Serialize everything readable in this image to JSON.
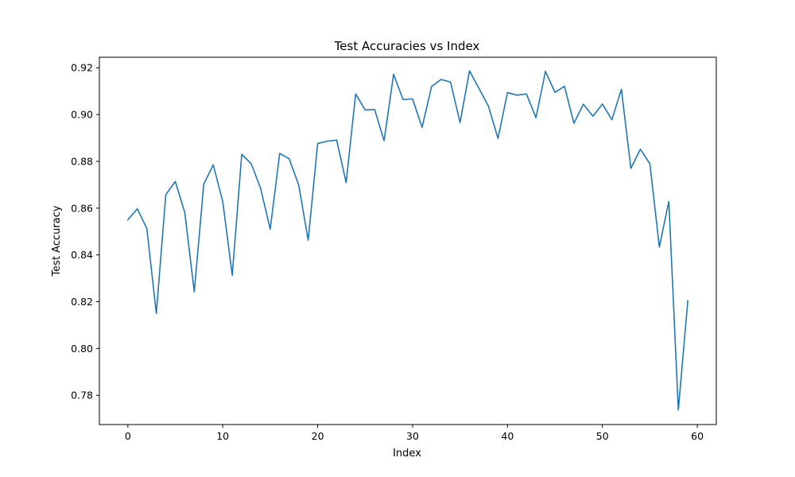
{
  "chart_data": {
    "type": "line",
    "title": "Test Accuracies vs Index",
    "xlabel": "Index",
    "ylabel": "Test Accuracy",
    "xlim": [
      -3,
      62
    ],
    "ylim": [
      0.7675,
      0.9245
    ],
    "xticks": [
      0,
      10,
      20,
      30,
      40,
      50,
      60
    ],
    "yticks": [
      0.78,
      0.8,
      0.82,
      0.84,
      0.86,
      0.88,
      0.9,
      0.92
    ],
    "xtick_labels": [
      "0",
      "10",
      "20",
      "30",
      "40",
      "50",
      "60"
    ],
    "ytick_labels": [
      "0.78",
      "0.80",
      "0.82",
      "0.84",
      "0.86",
      "0.88",
      "0.90",
      "0.92"
    ],
    "grid": false,
    "series": [
      {
        "color": "#1f77b4",
        "x": [
          0,
          1,
          2,
          3,
          4,
          5,
          6,
          7,
          8,
          9,
          10,
          11,
          12,
          13,
          14,
          15,
          16,
          17,
          18,
          19,
          20,
          21,
          22,
          23,
          24,
          25,
          26,
          27,
          28,
          29,
          30,
          31,
          32,
          33,
          34,
          35,
          36,
          37,
          38,
          39,
          40,
          41,
          42,
          43,
          44,
          45,
          46,
          47,
          48,
          49,
          50,
          51,
          52,
          53,
          54,
          55,
          56,
          57,
          58,
          59
        ],
        "y": [
          0.855,
          0.8597,
          0.8513,
          0.815,
          0.8658,
          0.8714,
          0.8581,
          0.8242,
          0.8703,
          0.8785,
          0.8627,
          0.8313,
          0.883,
          0.879,
          0.8683,
          0.851,
          0.8834,
          0.8811,
          0.8699,
          0.8463,
          0.8876,
          0.8886,
          0.8891,
          0.8709,
          0.9088,
          0.902,
          0.9022,
          0.8888,
          0.9172,
          0.9064,
          0.9067,
          0.8945,
          0.912,
          0.915,
          0.9139,
          0.8966,
          0.9187,
          0.9111,
          0.9035,
          0.8898,
          0.9094,
          0.9083,
          0.9088,
          0.8986,
          0.9185,
          0.9095,
          0.9121,
          0.8963,
          0.9044,
          0.8993,
          0.9045,
          0.8978,
          0.9108,
          0.877,
          0.8852,
          0.879,
          0.8434,
          0.8629,
          0.7737,
          0.8205
        ]
      }
    ]
  }
}
